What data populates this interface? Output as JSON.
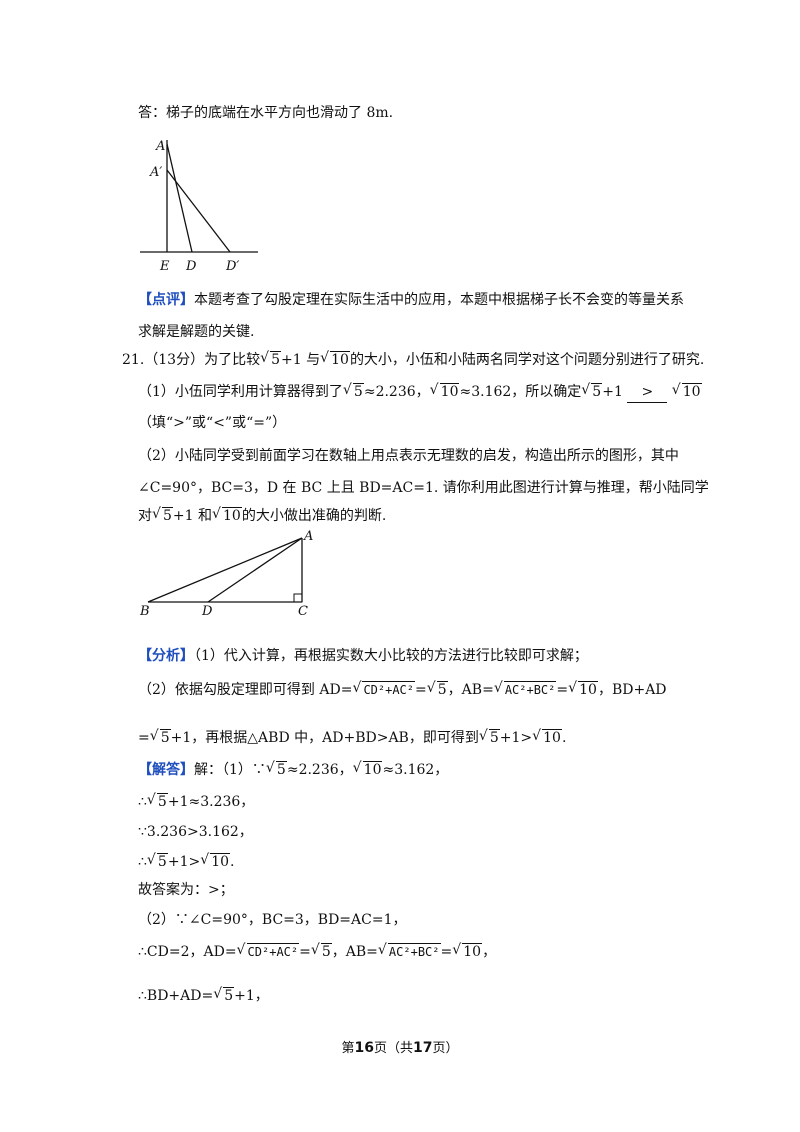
{
  "top_answer": "答：梯子的底端在水平方向也滑动了 8m.",
  "fig1": {
    "labels": [
      "A",
      "A′",
      "E",
      "D",
      "D′"
    ]
  },
  "comment_tag": "【点评】",
  "comment_line1": "本题考查了勾股定理在实际生活中的应用，本题中根据梯子长不会变的等量关系",
  "comment_line2": "求解是解题的关键.",
  "q21": {
    "number": "21.",
    "score": "（13分）",
    "stem_a": "为了比较",
    "stem_b": "+1 与",
    "stem_c": "的大小，小伍和小陆两名同学对这个问题分别进行了研究.",
    "p1_a": "（1）小伍同学利用计算器得到了",
    "p1_b": "≈2.236，",
    "p1_c": "≈3.162，所以确定",
    "p1_d": "+1",
    "p1_blank": ">",
    "p1_hint": "（填“>”或“<”或“=”）",
    "p2_l1": "（2）小陆同学受到前面学习在数轴上用点表示无理数的启发，构造出所示的图形，其中",
    "p2_l2": "∠C=90°，BC=3，D 在 BC 上且 BD=AC=1. 请你利用此图进行计算与推理，帮小陆同学",
    "p2_l3a": "对",
    "p2_l3b": "+1 和",
    "p2_l3c": "的大小做出准确的判断."
  },
  "fig2": {
    "labels": [
      "A",
      "B",
      "D",
      "C"
    ]
  },
  "analysis_tag": "【分析】",
  "analysis_l1": "（1）代入计算，再根据实数大小比较的方法进行比较即可求解；",
  "analysis_l2a": "（2）依据勾股定理即可得到 AD=",
  "analysis_l2b": "=",
  "analysis_l2c": "，AB=",
  "analysis_l2d": "=",
  "analysis_l2e": "，BD+AD",
  "analysis_l3a": "=",
  "analysis_l3b": "+1，再根据△ABD 中，AD+BD>AB，即可得到",
  "analysis_l3c": "+1>",
  "analysis_l3d": ".",
  "solution_tag": "【解答】",
  "sol_l1a": "解：（1）∵",
  "sol_l1b": "≈2.236，",
  "sol_l1c": "≈3.162，",
  "sol_l2a": "∴",
  "sol_l2b": "+1≈3.236，",
  "sol_l3": "∵3.236>3.162，",
  "sol_l4a": "∴",
  "sol_l4b": "+1>",
  "sol_l4c": ".",
  "sol_l5": "故答案为：>；",
  "sol_l6": "（2）∵∠C=90°，BC=3，BD=AC=1，",
  "sol_l7a": "∴CD=2，AD=",
  "sol_l7b": "=",
  "sol_l7c": "，AB=",
  "sol_l7d": "=",
  "sol_l7e": "，",
  "sol_l8a": "∴BD+AD=",
  "sol_l8b": "+1，",
  "math": {
    "r5": "5",
    "r10": "10",
    "cd_ac": "CD²+AC²",
    "ac_bc": "AC²+BC²"
  },
  "footer": {
    "a": "第",
    "page": "16",
    "b": "页（共",
    "total": "17",
    "c": "页）"
  }
}
